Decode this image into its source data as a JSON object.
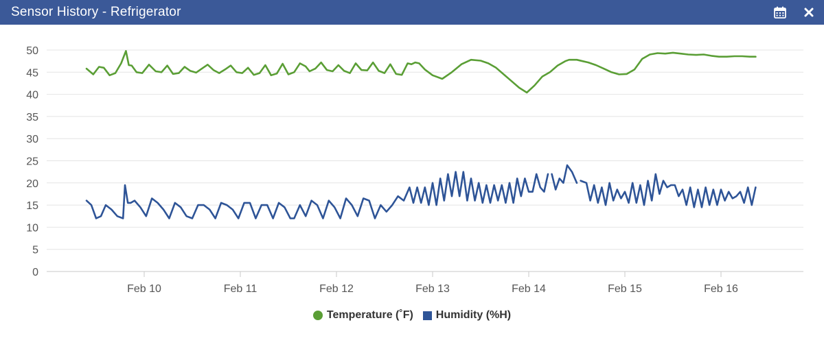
{
  "window": {
    "title": "Sensor History - Refrigerator",
    "header_color": "#3b5998",
    "icons": [
      "calendar-icon",
      "close-icon"
    ]
  },
  "chart_data": {
    "type": "line",
    "title": "",
    "xlabel": "",
    "ylabel": "",
    "ylim": [
      0,
      50
    ],
    "yticks": [
      0,
      5,
      10,
      15,
      20,
      25,
      30,
      35,
      40,
      45,
      50
    ],
    "xlim": [
      9.4,
      16.4
    ],
    "xticks": [
      {
        "label": "Feb 10",
        "x": 10
      },
      {
        "label": "Feb 11",
        "x": 11
      },
      {
        "label": "Feb 12",
        "x": 12
      },
      {
        "label": "Feb 13",
        "x": 13
      },
      {
        "label": "Feb 14",
        "x": 14
      },
      {
        "label": "Feb 15",
        "x": 15
      },
      {
        "label": "Feb 16",
        "x": 16
      }
    ],
    "x_unit": "day of February",
    "grid": "horizontal",
    "legend_position": "bottom-center",
    "series": [
      {
        "name": "Temperature (˚F)",
        "color": "#5a9e35",
        "marker": "circle",
        "x": [
          9.4,
          9.47,
          9.53,
          9.58,
          9.64,
          9.7,
          9.76,
          9.81,
          9.84,
          9.87,
          9.92,
          9.98,
          10.05,
          10.12,
          10.18,
          10.24,
          10.3,
          10.36,
          10.42,
          10.48,
          10.54,
          10.6,
          10.66,
          10.72,
          10.78,
          10.84,
          10.9,
          10.96,
          11.02,
          11.08,
          11.14,
          11.2,
          11.26,
          11.32,
          11.38,
          11.44,
          11.5,
          11.56,
          11.62,
          11.68,
          11.72,
          11.78,
          11.84,
          11.9,
          11.96,
          12.02,
          12.08,
          12.14,
          12.2,
          12.26,
          12.32,
          12.38,
          12.44,
          12.5,
          12.56,
          12.62,
          12.68,
          12.74,
          12.78,
          12.82,
          12.86,
          12.92,
          13.0,
          13.1,
          13.2,
          13.3,
          13.4,
          13.5,
          13.58,
          13.66,
          13.74,
          13.82,
          13.9,
          13.98,
          14.06,
          14.14,
          14.22,
          14.3,
          14.38,
          14.42,
          14.5,
          14.56,
          14.62,
          14.7,
          14.78,
          14.86,
          14.94,
          15.02,
          15.1,
          15.18,
          15.26,
          15.34,
          15.42,
          15.5,
          15.58,
          15.66,
          15.74,
          15.82,
          15.9,
          15.98,
          16.06,
          16.14,
          16.22,
          16.3,
          16.36
        ],
        "y": [
          45.8,
          44.5,
          46.2,
          46.0,
          44.3,
          44.8,
          47.0,
          49.8,
          46.6,
          46.5,
          45.0,
          44.8,
          46.7,
          45.2,
          45.0,
          46.5,
          44.6,
          44.8,
          46.2,
          45.3,
          44.9,
          45.8,
          46.7,
          45.5,
          44.8,
          45.6,
          46.5,
          45.0,
          44.8,
          46.0,
          44.4,
          44.8,
          46.6,
          44.3,
          44.7,
          46.9,
          44.5,
          45.0,
          47.0,
          46.3,
          45.2,
          45.8,
          47.2,
          45.5,
          45.2,
          46.6,
          45.3,
          44.8,
          47.0,
          45.5,
          45.4,
          47.2,
          45.3,
          44.8,
          46.8,
          44.6,
          44.4,
          47.0,
          46.8,
          47.2,
          47.0,
          45.6,
          44.3,
          43.5,
          45.0,
          46.8,
          47.8,
          47.6,
          47.0,
          46.0,
          44.5,
          43.0,
          41.5,
          40.4,
          42.0,
          44.0,
          45.0,
          46.5,
          47.5,
          47.8,
          47.8,
          47.5,
          47.2,
          46.6,
          45.8,
          45.0,
          44.5,
          44.6,
          45.6,
          48.0,
          49.0,
          49.3,
          49.2,
          49.4,
          49.2,
          49.0,
          48.9,
          49.0,
          48.7,
          48.5,
          48.5,
          48.6,
          48.6,
          48.5,
          48.5
        ]
      },
      {
        "name": "Humidity (%H)",
        "color": "#2e5497",
        "marker": "square",
        "segments": [
          {
            "x": [
              9.4,
              9.45,
              9.5,
              9.55,
              9.6,
              9.66,
              9.72,
              9.78,
              9.8,
              9.83,
              9.86,
              9.9,
              9.96,
              10.02,
              10.08,
              10.14,
              10.2,
              10.26,
              10.32,
              10.38,
              10.44,
              10.5,
              10.56,
              10.62,
              10.68,
              10.74,
              10.8,
              10.86,
              10.92,
              10.98,
              11.04,
              11.1,
              11.16,
              11.22,
              11.28,
              11.34,
              11.4,
              11.46,
              11.52,
              11.56,
              11.62,
              11.68,
              11.74,
              11.8,
              11.86,
              11.92,
              11.98,
              12.04,
              12.1,
              12.16,
              12.22,
              12.28,
              12.34,
              12.4,
              12.46,
              12.52,
              12.58,
              12.64,
              12.7,
              12.76,
              12.8,
              12.84,
              12.88,
              12.92,
              12.96,
              13.0,
              13.04,
              13.08,
              13.12,
              13.16,
              13.2,
              13.24,
              13.28,
              13.32,
              13.36,
              13.4,
              13.44,
              13.48,
              13.52,
              13.56,
              13.6,
              13.64,
              13.68,
              13.72,
              13.76,
              13.8,
              13.84,
              13.88,
              13.92,
              13.96,
              14.0,
              14.04,
              14.08,
              14.12,
              14.16,
              14.2
            ],
            "y": [
              16,
              15,
              12,
              12.5,
              15,
              14,
              12.5,
              12,
              19.5,
              15.5,
              15.5,
              16,
              14.5,
              12.5,
              16.5,
              15.5,
              14,
              12,
              15.5,
              14.5,
              12.5,
              12,
              15,
              15,
              14,
              12,
              15.5,
              15,
              14,
              12,
              15.5,
              15.5,
              12,
              15,
              15,
              12,
              15.5,
              14.5,
              12,
              12,
              15,
              12.5,
              16,
              15,
              12,
              16,
              14.5,
              12,
              16.5,
              15,
              12.5,
              16.5,
              16,
              12,
              15,
              13.5,
              15,
              17,
              16,
              19,
              15.5,
              19,
              15.5,
              19,
              15,
              20,
              15,
              21,
              16,
              22,
              17,
              22.5,
              17,
              22.5,
              16,
              21,
              16,
              20,
              15.5,
              19.5,
              15.5,
              19.5,
              16,
              19.5,
              15.5,
              20,
              15.5,
              21,
              17,
              21,
              18,
              18,
              22,
              19,
              18,
              22
            ]
          },
          {
            "x": [
              14.24,
              14.28,
              14.32,
              14.36,
              14.4,
              14.45,
              14.5
            ],
            "y": [
              22,
              18.5,
              21,
              20,
              24,
              22.5,
              20
            ]
          },
          {
            "x": [
              14.54,
              14.6,
              14.64,
              14.68,
              14.72,
              14.76,
              14.8,
              14.84,
              14.88,
              14.92,
              14.96,
              15.0,
              15.04,
              15.08,
              15.12,
              15.16,
              15.2,
              15.24,
              15.28,
              15.32,
              15.36,
              15.4,
              15.44,
              15.48,
              15.52,
              15.56,
              15.6,
              15.64,
              15.68,
              15.72,
              15.76,
              15.8,
              15.84,
              15.88,
              15.92,
              15.96,
              16.0,
              16.04,
              16.08,
              16.12,
              16.16,
              16.2,
              16.24,
              16.28,
              16.32,
              16.36
            ],
            "y": [
              20.5,
              20,
              16,
              19.5,
              15.5,
              19,
              15,
              20,
              16,
              18.5,
              16.5,
              18,
              15.5,
              20,
              15.5,
              19.5,
              15,
              20.5,
              16,
              22,
              17.5,
              20.5,
              19,
              19.5,
              19.5,
              17,
              18.5,
              15,
              19,
              14.5,
              18.5,
              14.5,
              19,
              15,
              18.5,
              15,
              18.5,
              16,
              18,
              16.5,
              17,
              18,
              15.5,
              19,
              15,
              19
            ]
          }
        ]
      }
    ]
  },
  "legend": {
    "items": [
      {
        "label": "Temperature (˚F)",
        "color": "#5a9e35"
      },
      {
        "label": "Humidity (%H)",
        "color": "#2e5497"
      }
    ]
  }
}
